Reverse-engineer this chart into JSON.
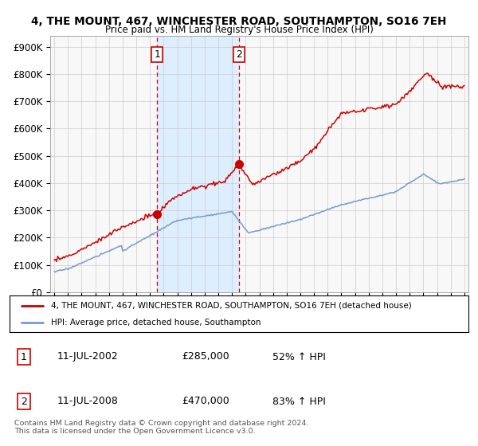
{
  "title_line1": "4, THE MOUNT, 467, WINCHESTER ROAD, SOUTHAMPTON, SO16 7EH",
  "title_line2": "Price paid vs. HM Land Registry's House Price Index (HPI)",
  "ylabel_ticks": [
    "£0",
    "£100K",
    "£200K",
    "£300K",
    "£400K",
    "£500K",
    "£600K",
    "£700K",
    "£800K",
    "£900K"
  ],
  "ytick_values": [
    0,
    100000,
    200000,
    300000,
    400000,
    500000,
    600000,
    700000,
    800000,
    900000
  ],
  "ylim": [
    0,
    940000
  ],
  "xlim_start": 1994.7,
  "xlim_end": 2025.3,
  "x_ticks": [
    1995,
    1996,
    1997,
    1998,
    1999,
    2000,
    2001,
    2002,
    2003,
    2004,
    2005,
    2006,
    2007,
    2008,
    2009,
    2010,
    2011,
    2012,
    2013,
    2014,
    2015,
    2016,
    2017,
    2018,
    2019,
    2020,
    2021,
    2022,
    2023,
    2024,
    2025
  ],
  "sale1_x": 2002.53,
  "sale1_y": 285000,
  "sale2_x": 2008.53,
  "sale2_y": 470000,
  "sale_color": "#cc0000",
  "hpi_color": "#7799cc",
  "vline_color": "#cc0000",
  "highlight_color": "#ddeeff",
  "legend_entry1": "4, THE MOUNT, 467, WINCHESTER ROAD, SOUTHAMPTON, SO16 7EH (detached house)",
  "legend_entry2": "HPI: Average price, detached house, Southampton",
  "table_row1": [
    "1",
    "11-JUL-2002",
    "£285,000",
    "52% ↑ HPI"
  ],
  "table_row2": [
    "2",
    "11-JUL-2008",
    "£470,000",
    "83% ↑ HPI"
  ],
  "footnote": "Contains HM Land Registry data © Crown copyright and database right 2024.\nThis data is licensed under the Open Government Licence v3.0.",
  "background_color": "#ffffff"
}
